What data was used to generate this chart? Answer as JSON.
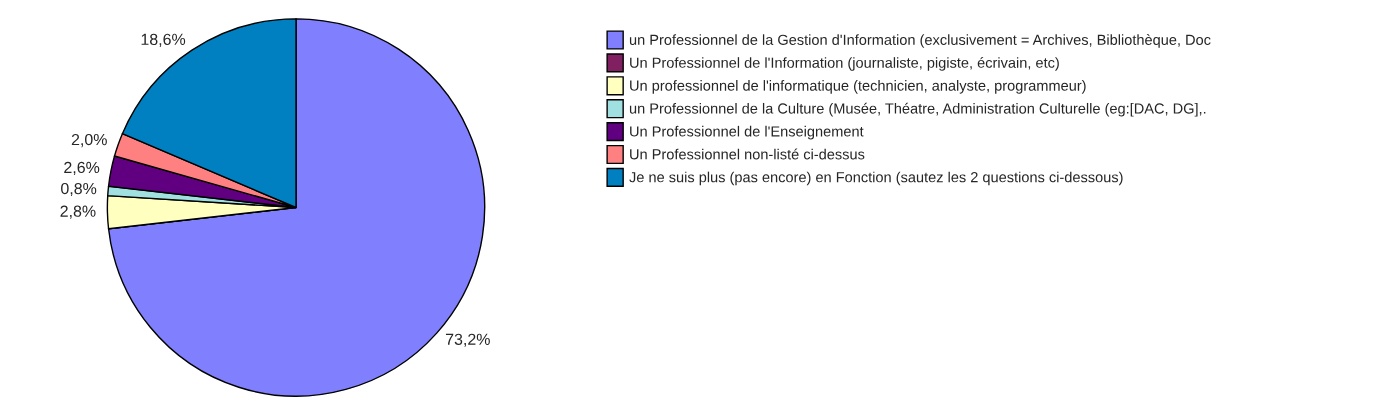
{
  "chart_data": {
    "type": "pie",
    "categories": [
      "un Professionnel de la Gestion d'Information (exclusivement = Archives, Bibliothèque, Doc",
      "Un Professionnel de l'Information (journaliste, pigiste, écrivain, etc)",
      "Un professionnel de l'informatique (technicien, analyste, programmeur)",
      "un Professionnel de la Culture (Musée, Théatre, Administration Culturelle (eg:[DAC, DG],.",
      "Un Professionnel de l'Enseignement",
      "Un Professionnel non-listé ci-dessus",
      "Je ne suis plus (pas encore) en Fonction (sautez les 2 questions ci-dessous)"
    ],
    "values": [
      73.2,
      0,
      2.8,
      0.8,
      2.6,
      2.0,
      18.6
    ],
    "value_labels": [
      "73,2%",
      null,
      "2,8%",
      "0,8%",
      "2,6%",
      "2,0%",
      "18,6%"
    ],
    "colors": [
      "#8080ff",
      "#802060",
      "#ffffc0",
      "#a0e0e0",
      "#600080",
      "#ff8080",
      "#0080c0"
    ],
    "legend": "right"
  }
}
